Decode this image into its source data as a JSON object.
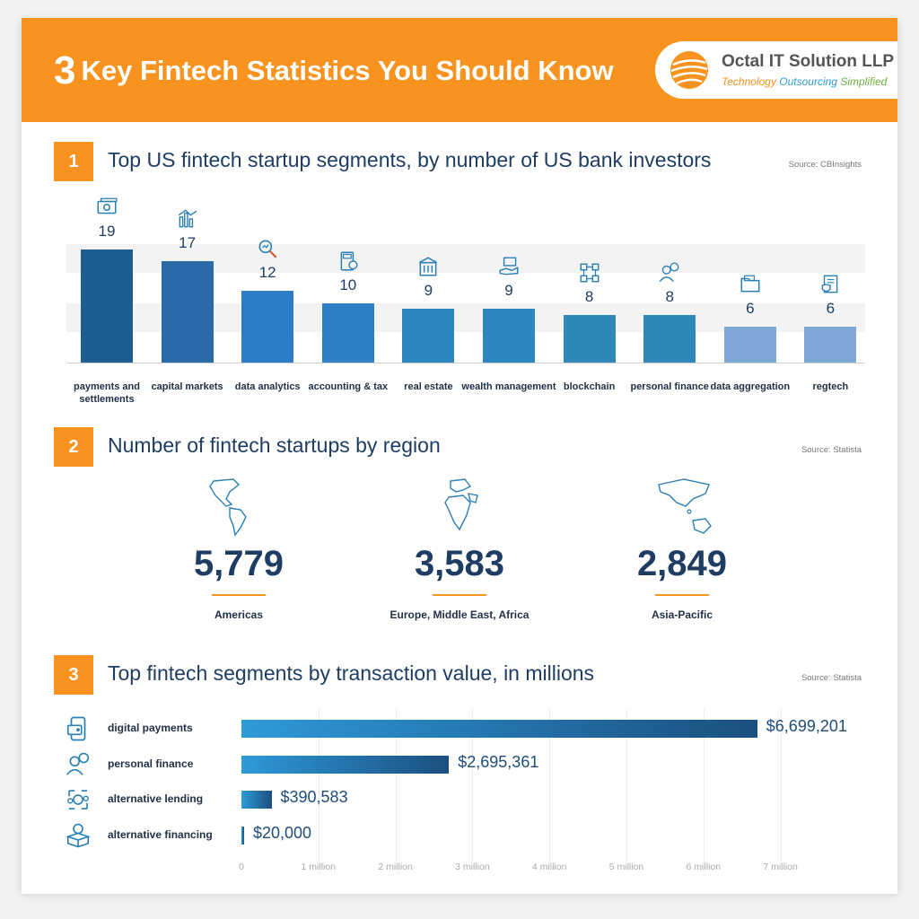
{
  "header": {
    "number": "3",
    "title": "Key Fintech Statistics You Should Know",
    "logo_name": "Octal IT Solution LLP",
    "logo_tag_1": "Technology",
    "logo_tag_2": "Outsourcing",
    "logo_tag_3": "Simplified"
  },
  "colors": {
    "accent_orange": "#f7931e",
    "navy_text": "#1f3d63",
    "bar_dark": "#1b5e8f",
    "bar_light": "#7ea6d6"
  },
  "sections": [
    {
      "num": "1",
      "title": "Top US fintech startup segments, by number of US bank investors",
      "source": "Source: CBInsights"
    },
    {
      "num": "2",
      "title": "Number of fintech startups by region",
      "source": "Source: Statista"
    },
    {
      "num": "3",
      "title": "Top fintech segments by transaction value, in millions",
      "source": "Source: Statista"
    }
  ],
  "chart_data": [
    {
      "type": "bar",
      "title": "Top US fintech startup segments, by number of US bank investors",
      "categories": [
        "payments and settlements",
        "capital markets",
        "data analytics",
        "accounting & tax",
        "real estate",
        "wealth management",
        "blockchain",
        "personal finance",
        "data aggregation",
        "regtech"
      ],
      "values": [
        19,
        17,
        12,
        10,
        9,
        9,
        8,
        8,
        6,
        6
      ],
      "value_labels": [
        "19",
        "17",
        "12",
        "10",
        "9",
        "9",
        "8",
        "8",
        "6",
        "6"
      ],
      "icons": [
        "money-icon",
        "chart-icon",
        "magnifier-icon",
        "calculator-icon",
        "building-icon",
        "hand-money-icon",
        "blockchain-icon",
        "person-coin-icon",
        "folder-icon",
        "shield-document-icon"
      ],
      "ylim": [
        0,
        20
      ],
      "grid": false
    },
    {
      "type": "table",
      "title": "Number of fintech startups by region",
      "rows": [
        {
          "region": "Americas",
          "value": "5,779",
          "icon": "americas-map-icon"
        },
        {
          "region": "Europe, Middle East, Africa",
          "value": "3,583",
          "icon": "emea-map-icon"
        },
        {
          "region": "Asia-Pacific",
          "value": "2,849",
          "icon": "asia-pacific-map-icon"
        }
      ]
    },
    {
      "type": "bar",
      "orientation": "horizontal",
      "title": "Top fintech segments by transaction value, in millions",
      "categories": [
        "digital payments",
        "personal finance",
        "alternative lending",
        "alternative financing"
      ],
      "values": [
        6699201,
        2695361,
        390583,
        20000
      ],
      "value_labels": [
        "$6,699,201",
        "$2,695,361",
        "$390,583",
        "$20,000"
      ],
      "icons": [
        "wallet-phone-icon",
        "person-coin-icon",
        "lending-cycle-icon",
        "box-coin-icon"
      ],
      "xlim": [
        0,
        7000000
      ],
      "x_ticks": [
        "0",
        "1 million",
        "2 million",
        "3 million",
        "4 million",
        "5 million",
        "6 million",
        "7 million"
      ],
      "grid": true
    }
  ]
}
